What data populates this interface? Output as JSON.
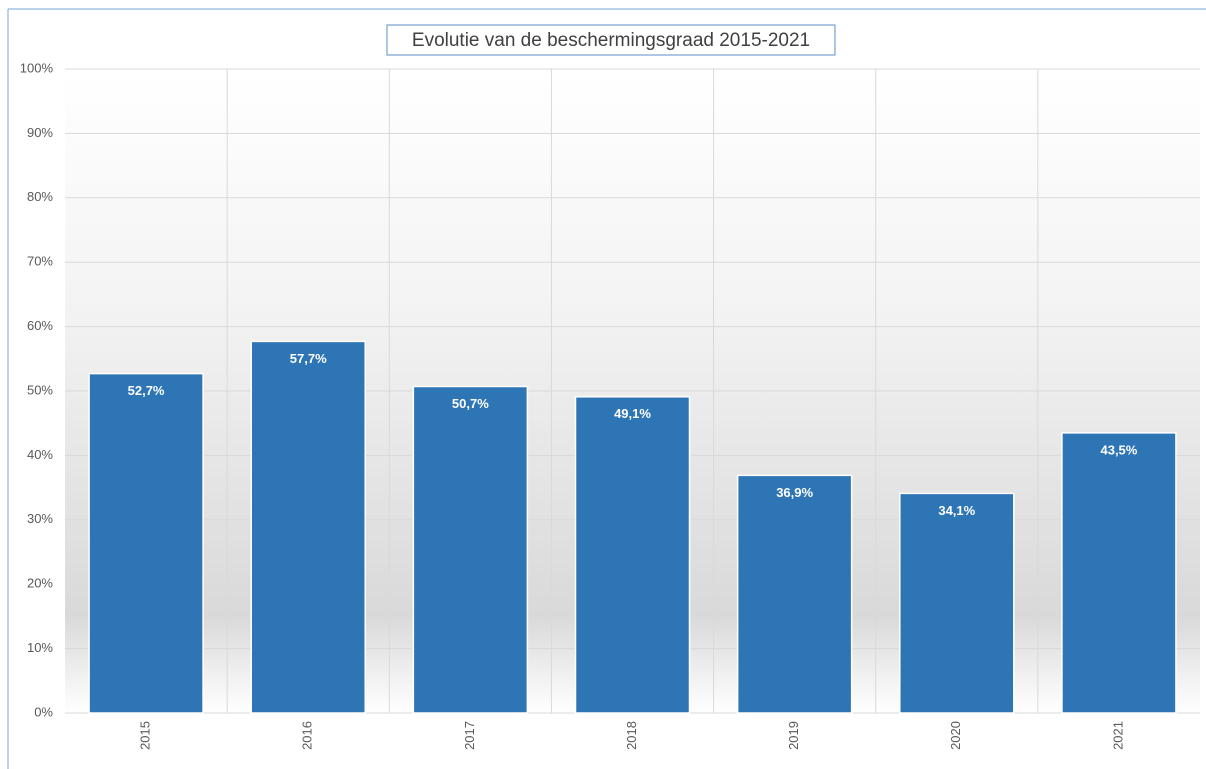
{
  "chart_data": {
    "type": "bar",
    "title": "Evolutie van de beschermingsgraad 2015-2021",
    "categories": [
      "2015",
      "2016",
      "2017",
      "2018",
      "2019",
      "2020",
      "2021"
    ],
    "values": [
      52.7,
      57.7,
      50.7,
      49.1,
      36.9,
      34.1,
      43.5
    ],
    "value_labels": [
      "52,7%",
      "57,7%",
      "50,7%",
      "49,1%",
      "36,9%",
      "34,1%",
      "43,5%"
    ],
    "color": "#2e75b6",
    "ylim": [
      0,
      100
    ],
    "yticks": [
      {
        "value": 0,
        "label": "0%"
      },
      {
        "value": 10,
        "label": "10%"
      },
      {
        "value": 20,
        "label": "20%"
      },
      {
        "value": 30,
        "label": "30%"
      },
      {
        "value": 40,
        "label": "40%"
      },
      {
        "value": 50,
        "label": "50%"
      },
      {
        "value": 60,
        "label": "60%"
      },
      {
        "value": 70,
        "label": "70%"
      },
      {
        "value": 80,
        "label": "80%"
      },
      {
        "value": 90,
        "label": "90%"
      },
      {
        "value": 100,
        "label": "100%"
      }
    ],
    "grid": true
  }
}
